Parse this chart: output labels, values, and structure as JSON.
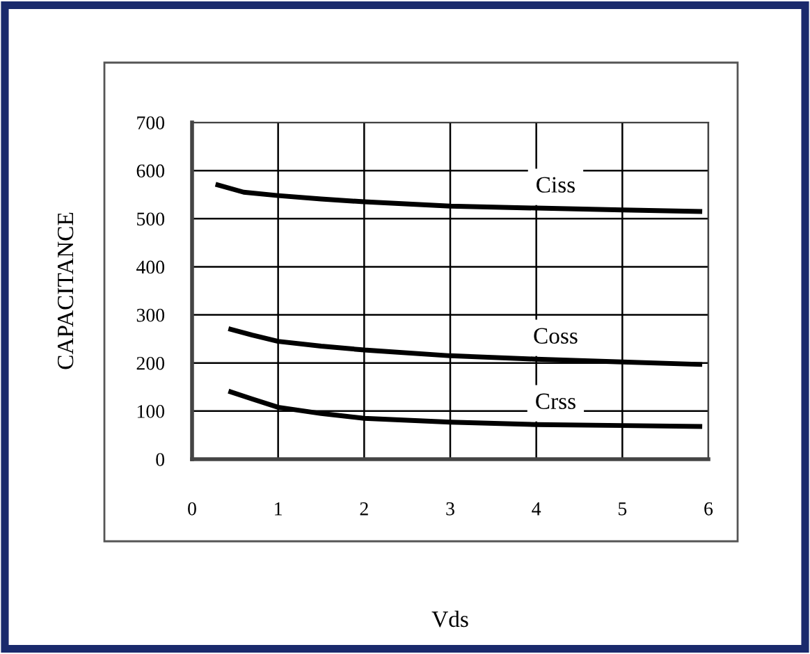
{
  "chart_data": {
    "type": "line",
    "xlabel": "Vds",
    "ylabel": "CAPACITANCE",
    "xlim": [
      0,
      6
    ],
    "xticks": [
      0,
      1,
      2,
      3,
      4,
      5,
      6
    ],
    "ylim": [
      0,
      700
    ],
    "yticks": [
      0,
      100,
      200,
      300,
      400,
      500,
      600,
      700
    ],
    "grid": true,
    "legend": false,
    "marker": "none",
    "line_style": "solid",
    "series": [
      {
        "name": "Ciss",
        "color": "#000000",
        "x": [
          0.3,
          0.6,
          1,
          1.5,
          2,
          3,
          4,
          5,
          5.9
        ],
        "values": [
          570,
          555,
          548,
          541,
          535,
          526,
          522,
          518,
          515
        ]
      },
      {
        "name": "Coss",
        "color": "#000000",
        "x": [
          0.45,
          0.7,
          1,
          1.5,
          2,
          3,
          4,
          5,
          5.9
        ],
        "values": [
          270,
          258,
          245,
          235,
          227,
          215,
          208,
          202,
          197
        ]
      },
      {
        "name": "Crss",
        "color": "#000000",
        "x": [
          0.45,
          0.7,
          1,
          1.5,
          2,
          3,
          4,
          5,
          5.9
        ],
        "values": [
          140,
          125,
          108,
          95,
          85,
          77,
          72,
          70,
          68
        ]
      }
    ]
  }
}
